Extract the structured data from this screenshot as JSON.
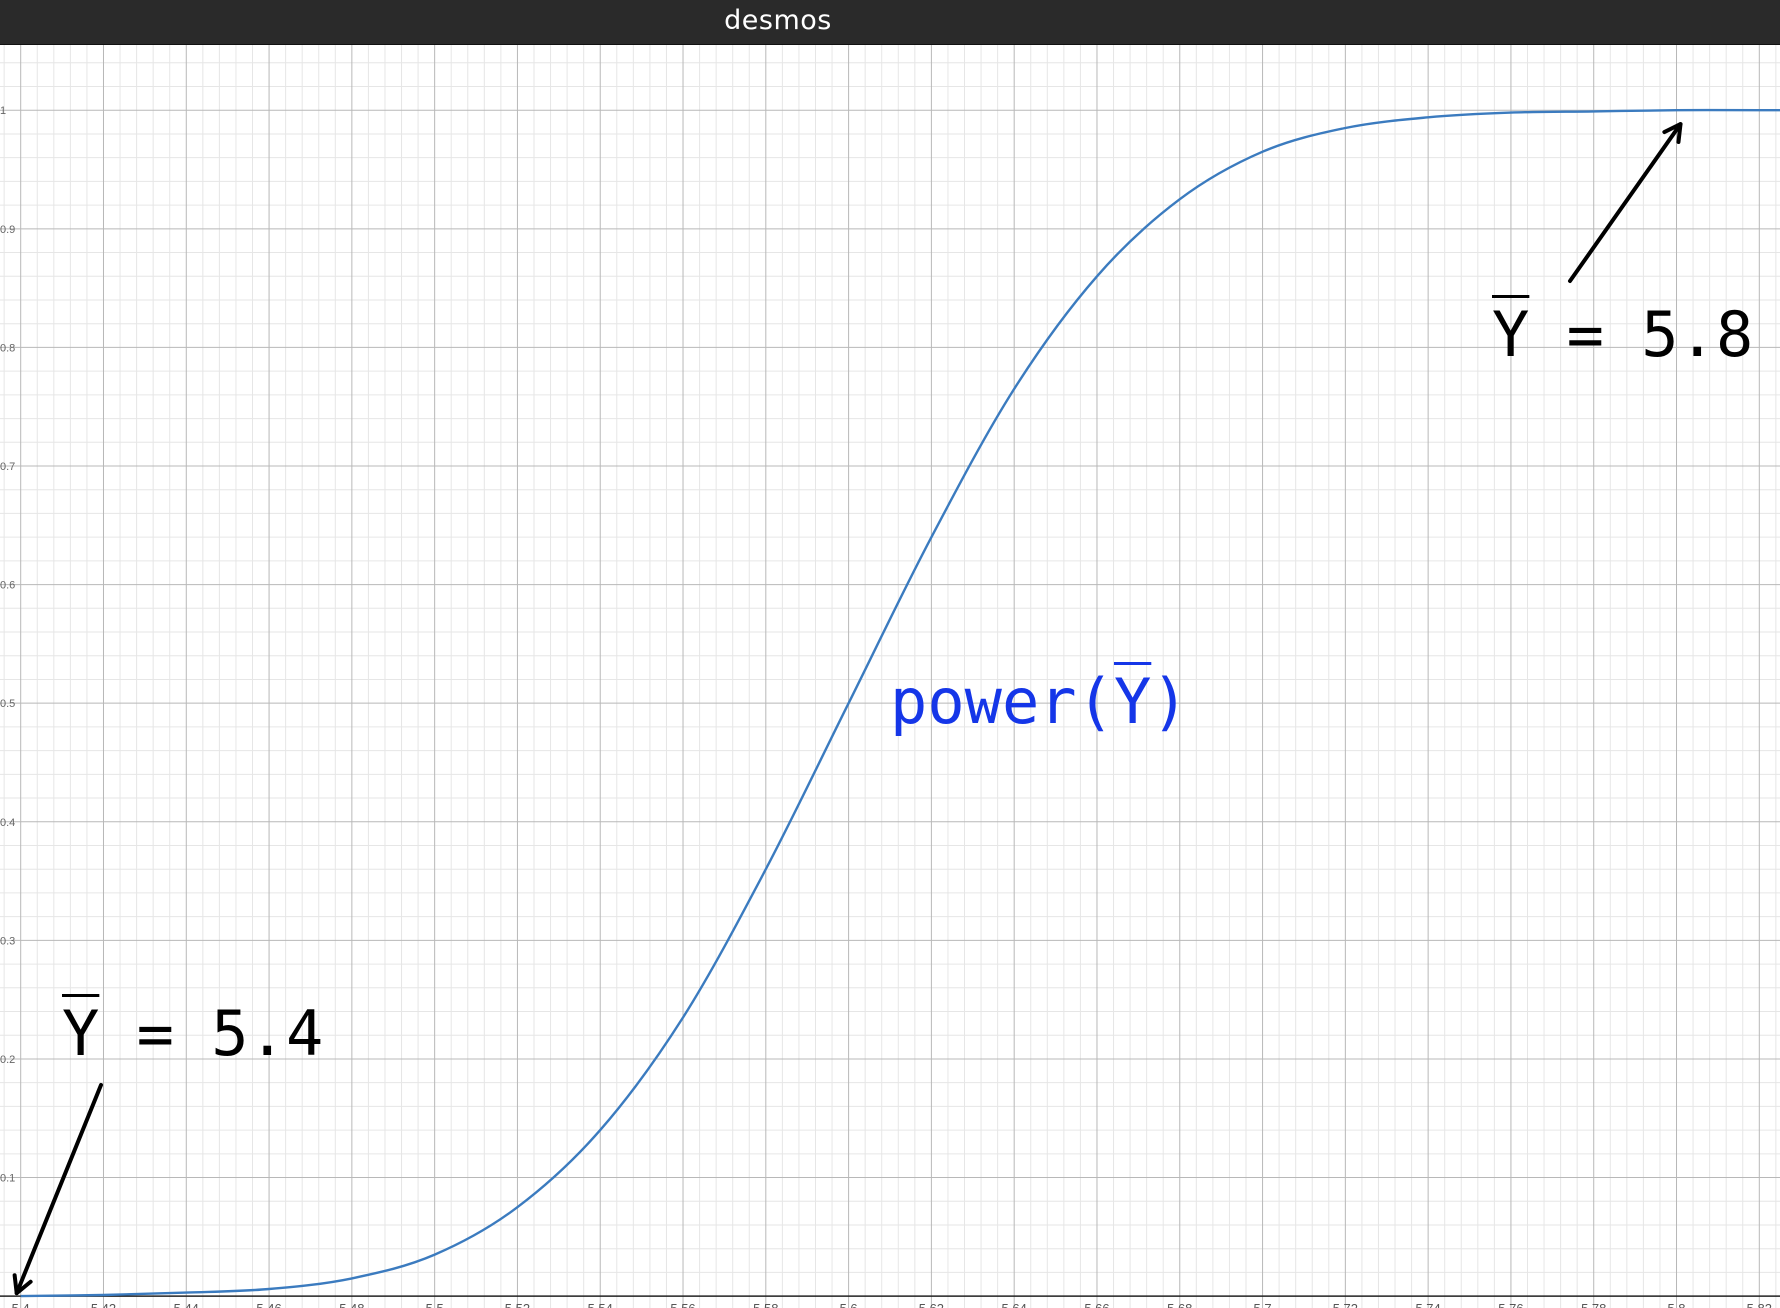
{
  "app": {
    "brand": "desmos"
  },
  "colors": {
    "curve": "#3b7bbf",
    "label": "#1536e8",
    "arrow": "#000000",
    "topbar": "#2a2a2a"
  },
  "chart_data": {
    "type": "line",
    "title": "",
    "xlabel": "",
    "ylabel": "",
    "xlim": [
      5.395,
      5.825
    ],
    "ylim": [
      -0.01,
      1.055
    ],
    "x_ticks": [
      "5.4",
      "5.42",
      "5.44",
      "5.46",
      "5.48",
      "5.5",
      "5.52",
      "5.54",
      "5.56",
      "5.58",
      "5.6",
      "5.62",
      "5.64",
      "5.66",
      "5.68",
      "5.7",
      "5.72",
      "5.74",
      "5.76",
      "5.78",
      "5.8",
      "5.82"
    ],
    "y_ticks": [
      "0.1",
      "0.2",
      "0.3",
      "0.4",
      "0.5",
      "0.6",
      "0.7",
      "0.8",
      "0.9",
      "1"
    ],
    "grid": true,
    "series": [
      {
        "name": "power(Y)",
        "x": [
          5.4,
          5.42,
          5.44,
          5.46,
          5.48,
          5.5,
          5.52,
          5.54,
          5.56,
          5.58,
          5.6,
          5.62,
          5.64,
          5.66,
          5.68,
          5.7,
          5.72,
          5.74,
          5.76,
          5.78,
          5.8,
          5.82
        ],
        "y": [
          0.0,
          0.001,
          0.003,
          0.006,
          0.015,
          0.035,
          0.075,
          0.14,
          0.235,
          0.36,
          0.5,
          0.64,
          0.765,
          0.86,
          0.925,
          0.965,
          0.985,
          0.994,
          0.998,
          0.999,
          1.0,
          1.0
        ]
      }
    ],
    "annotations": [
      {
        "name": "Y",
        "equals": " = 5.4",
        "arrow_to": [
          5.4,
          0.0
        ]
      },
      {
        "name": "Y",
        "equals": " = 5.8",
        "arrow_to": [
          5.8,
          0.99
        ]
      }
    ],
    "curve_label": {
      "prefix": "power(",
      "bar": "Y",
      "suffix": ")"
    }
  }
}
